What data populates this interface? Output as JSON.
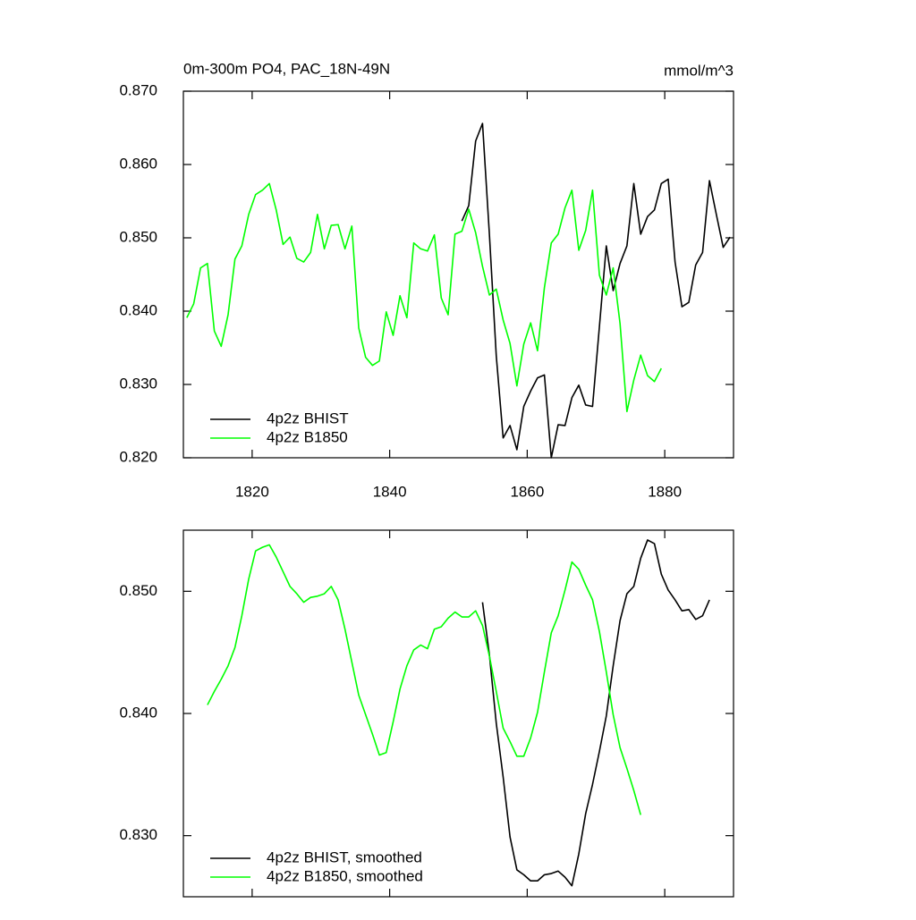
{
  "chart_data": [
    {
      "type": "line",
      "title": "0m-300m PO4, PAC_18N-49N",
      "units": "mmol/m^3",
      "xlim": [
        1810,
        1890
      ],
      "xticks": [
        1820,
        1840,
        1860,
        1880
      ],
      "show_xtick_labels": true,
      "ylim": [
        0.82,
        0.87
      ],
      "yticks": [
        {
          "value": 0.82,
          "label": "0.820"
        },
        {
          "value": 0.83,
          "label": "0.830"
        },
        {
          "value": 0.84,
          "label": "0.840"
        },
        {
          "value": 0.85,
          "label": "0.850"
        },
        {
          "value": 0.86,
          "label": "0.860"
        },
        {
          "value": 0.87,
          "label": "0.870"
        }
      ],
      "legend": "lower left",
      "series": [
        {
          "name": "4p2z BHIST",
          "color": "#000000",
          "x": [
            1850.5,
            1851.5,
            1852.5,
            1853.5,
            1854.5,
            1855.5,
            1856.5,
            1857.5,
            1858.5,
            1859.5,
            1860.5,
            1861.5,
            1862.5,
            1863.5,
            1864.5,
            1865.5,
            1866.5,
            1867.5,
            1868.5,
            1869.5,
            1870.5,
            1871.5,
            1872.5,
            1873.5,
            1874.5,
            1875.5,
            1876.5,
            1877.5,
            1878.5,
            1879.5,
            1880.5,
            1881.5,
            1882.5,
            1883.5,
            1884.5,
            1885.5,
            1886.5,
            1887.5,
            1888.5,
            1889.5
          ],
          "values": [
            0.8523,
            0.8544,
            0.8632,
            0.8656,
            0.8505,
            0.8339,
            0.8227,
            0.8244,
            0.8211,
            0.827,
            0.8291,
            0.8309,
            0.8313,
            0.82,
            0.8245,
            0.8244,
            0.8282,
            0.8299,
            0.8272,
            0.827,
            0.8379,
            0.8489,
            0.8428,
            0.8465,
            0.8489,
            0.8574,
            0.8505,
            0.8529,
            0.8538,
            0.8574,
            0.858,
            0.8467,
            0.8406,
            0.8412,
            0.8463,
            0.848,
            0.8578,
            0.8532,
            0.8487,
            0.8501
          ]
        },
        {
          "name": "4p2z B1850",
          "color": "#00ff00",
          "x": [
            1810.5,
            1811.5,
            1812.5,
            1813.5,
            1814.5,
            1815.5,
            1816.5,
            1817.5,
            1818.5,
            1819.5,
            1820.5,
            1821.5,
            1822.5,
            1823.5,
            1824.5,
            1825.5,
            1826.5,
            1827.5,
            1828.5,
            1829.5,
            1830.5,
            1831.5,
            1832.5,
            1833.5,
            1834.5,
            1835.5,
            1836.5,
            1837.5,
            1838.5,
            1839.5,
            1840.5,
            1841.5,
            1842.5,
            1843.5,
            1844.5,
            1845.5,
            1846.5,
            1847.5,
            1848.5,
            1849.5,
            1850.5,
            1851.5,
            1852.5,
            1853.5,
            1854.5,
            1855.5,
            1856.5,
            1857.5,
            1858.5,
            1859.5,
            1860.5,
            1861.5,
            1862.5,
            1863.5,
            1864.5,
            1865.5,
            1866.5,
            1867.5,
            1868.5,
            1869.5,
            1870.5,
            1871.5,
            1872.5,
            1873.5,
            1874.5,
            1875.5,
            1876.5,
            1877.5,
            1878.5,
            1879.5
          ],
          "values": [
            0.8391,
            0.841,
            0.8459,
            0.8465,
            0.8373,
            0.8352,
            0.8395,
            0.8471,
            0.8489,
            0.8532,
            0.8559,
            0.8565,
            0.8574,
            0.8538,
            0.8491,
            0.8501,
            0.8472,
            0.8467,
            0.848,
            0.8532,
            0.8485,
            0.8517,
            0.8518,
            0.8485,
            0.8516,
            0.8377,
            0.8337,
            0.8326,
            0.8332,
            0.8399,
            0.8367,
            0.8421,
            0.8391,
            0.8493,
            0.8485,
            0.8482,
            0.8504,
            0.8418,
            0.8395,
            0.8505,
            0.8509,
            0.8539,
            0.8507,
            0.8461,
            0.8422,
            0.843,
            0.8388,
            0.8356,
            0.8298,
            0.8355,
            0.8384,
            0.8346,
            0.8432,
            0.8493,
            0.8505,
            0.8541,
            0.8565,
            0.8483,
            0.851,
            0.8565,
            0.8449,
            0.8422,
            0.8459,
            0.8383,
            0.8263,
            0.8306,
            0.834,
            0.8312,
            0.8304,
            0.8322
          ]
        }
      ]
    },
    {
      "type": "line",
      "xlim": [
        1810,
        1890
      ],
      "xticks": [
        1820,
        1840,
        1860,
        1880
      ],
      "show_xtick_labels": false,
      "ylim": [
        0.825,
        0.855
      ],
      "yticks": [
        {
          "value": 0.83,
          "label": "0.830"
        },
        {
          "value": 0.84,
          "label": "0.840"
        },
        {
          "value": 0.85,
          "label": "0.850"
        }
      ],
      "legend": "lower left",
      "series": [
        {
          "name": "4p2z BHIST, smoothed",
          "color": "#000000",
          "x": [
            1853.5,
            1854.5,
            1855.5,
            1856.5,
            1857.5,
            1858.5,
            1859.5,
            1860.5,
            1861.5,
            1862.5,
            1863.5,
            1864.5,
            1865.5,
            1866.5,
            1867.5,
            1868.5,
            1869.5,
            1870.5,
            1871.5,
            1872.5,
            1873.5,
            1874.5,
            1875.5,
            1876.5,
            1877.5,
            1878.5,
            1879.5,
            1880.5,
            1881.5,
            1882.5,
            1883.5,
            1884.5,
            1885.5,
            1886.5
          ],
          "values": [
            0.8491,
            0.8448,
            0.8392,
            0.8348,
            0.8299,
            0.8272,
            0.8268,
            0.8263,
            0.8263,
            0.8268,
            0.8269,
            0.8271,
            0.8266,
            0.8259,
            0.8285,
            0.8318,
            0.8342,
            0.8369,
            0.8398,
            0.8439,
            0.8476,
            0.8498,
            0.8504,
            0.8527,
            0.8542,
            0.8539,
            0.8514,
            0.8501,
            0.8493,
            0.8484,
            0.8485,
            0.8477,
            0.848,
            0.8493
          ]
        },
        {
          "name": "4p2z B1850, smoothed",
          "color": "#00ff00",
          "x": [
            1813.5,
            1814.5,
            1815.5,
            1816.5,
            1817.5,
            1818.5,
            1819.5,
            1820.5,
            1821.5,
            1822.5,
            1823.5,
            1824.5,
            1825.5,
            1826.5,
            1827.5,
            1828.5,
            1829.5,
            1830.5,
            1831.5,
            1832.5,
            1833.5,
            1834.5,
            1835.5,
            1836.5,
            1837.5,
            1838.5,
            1839.5,
            1840.5,
            1841.5,
            1842.5,
            1843.5,
            1844.5,
            1845.5,
            1846.5,
            1847.5,
            1848.5,
            1849.5,
            1850.5,
            1851.5,
            1852.5,
            1853.5,
            1854.5,
            1855.5,
            1856.5,
            1857.5,
            1858.5,
            1859.5,
            1860.5,
            1861.5,
            1862.5,
            1863.5,
            1864.5,
            1865.5,
            1866.5,
            1867.5,
            1868.5,
            1869.5,
            1870.5,
            1871.5,
            1872.5,
            1873.5,
            1874.5,
            1875.5,
            1876.5
          ],
          "values": [
            0.8407,
            0.8418,
            0.8428,
            0.8439,
            0.8454,
            0.848,
            0.851,
            0.8533,
            0.8536,
            0.8538,
            0.8528,
            0.8516,
            0.8504,
            0.8498,
            0.8491,
            0.8495,
            0.8496,
            0.8498,
            0.8504,
            0.8493,
            0.8469,
            0.8442,
            0.8415,
            0.8399,
            0.8383,
            0.8366,
            0.8368,
            0.8393,
            0.842,
            0.8439,
            0.8452,
            0.8456,
            0.8453,
            0.8469,
            0.8471,
            0.8478,
            0.8483,
            0.8479,
            0.8479,
            0.8484,
            0.8472,
            0.8447,
            0.8418,
            0.8388,
            0.8377,
            0.8365,
            0.8365,
            0.838,
            0.8401,
            0.8434,
            0.8466,
            0.848,
            0.8501,
            0.8524,
            0.8518,
            0.8505,
            0.8493,
            0.8467,
            0.8434,
            0.8399,
            0.8372,
            0.8355,
            0.8337,
            0.8317
          ]
        }
      ]
    }
  ]
}
